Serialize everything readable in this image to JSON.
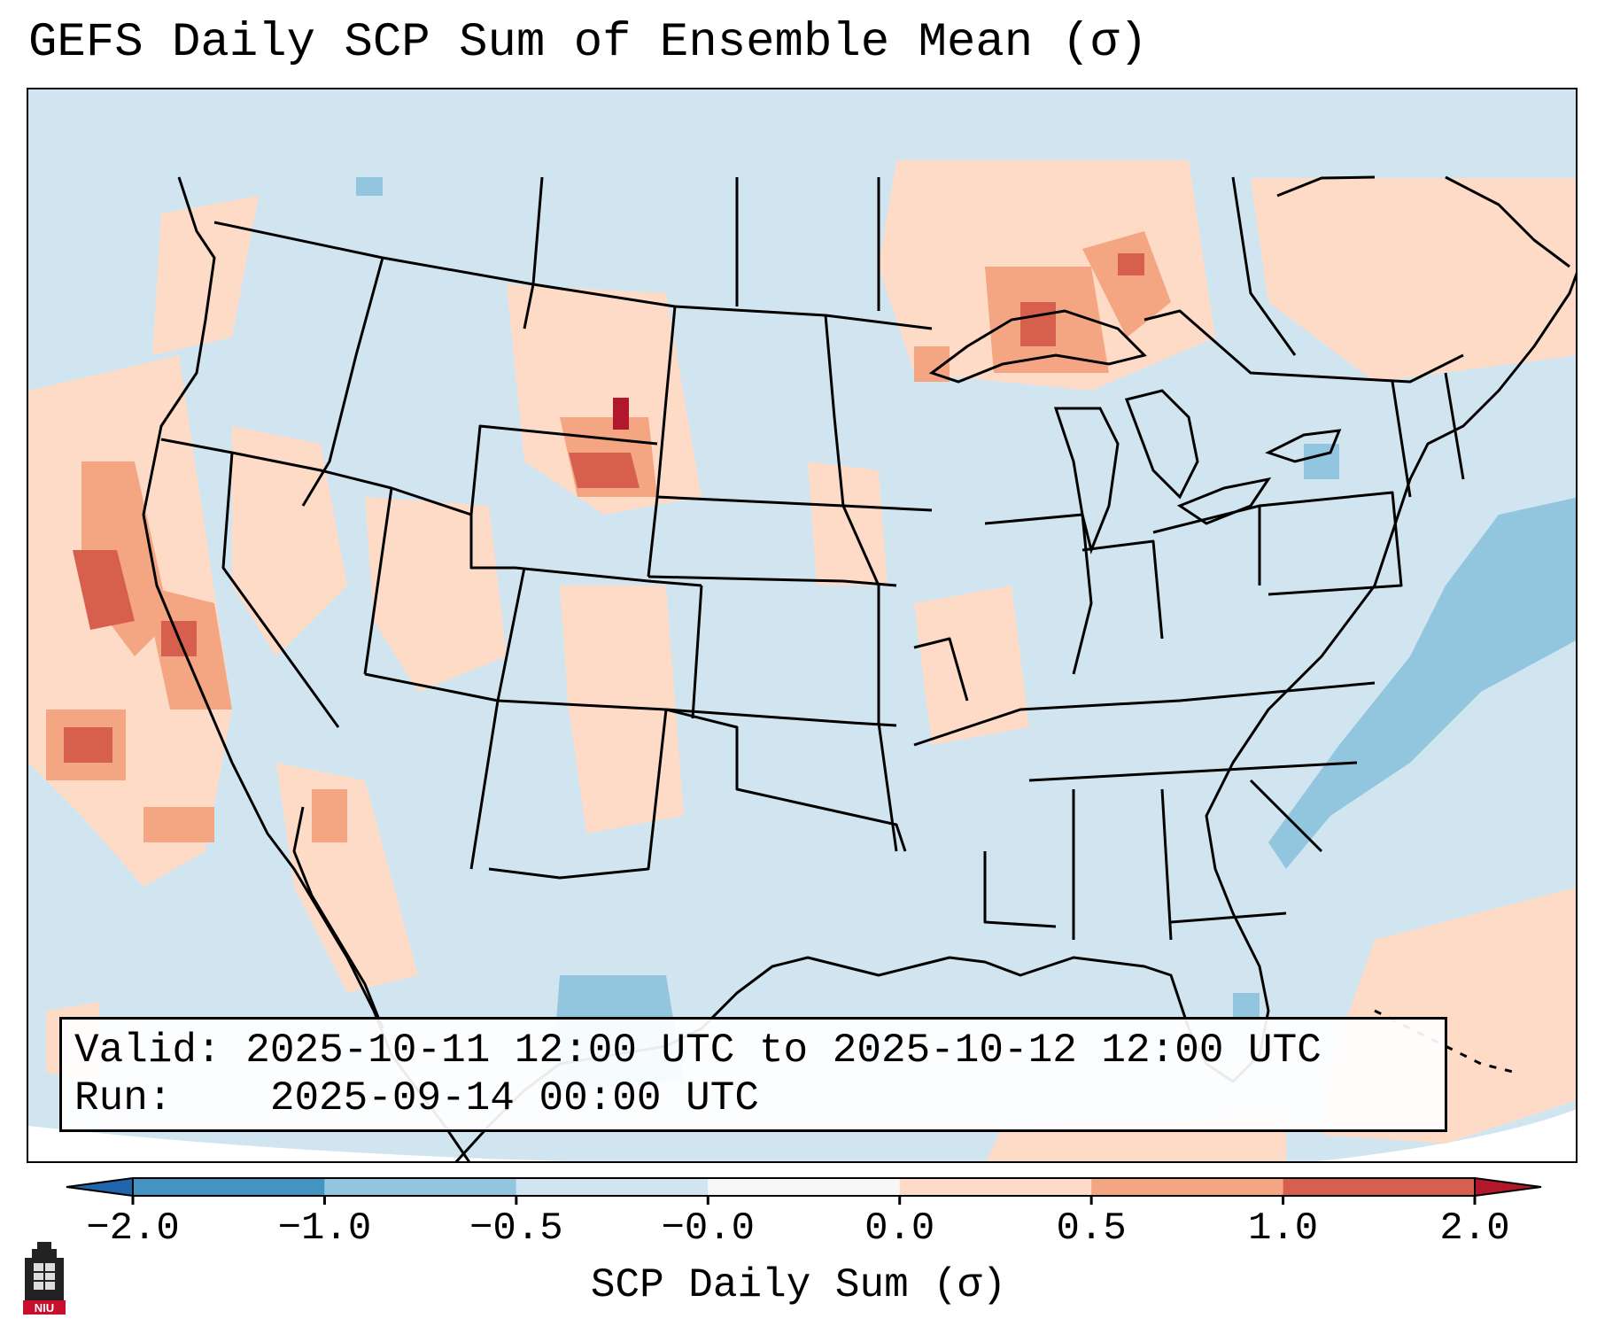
{
  "title": "GEFS Daily SCP Sum of Ensemble Mean (σ)",
  "info": {
    "valid_label": "Valid:",
    "valid_value": "2025-10-11 12:00 UTC to 2025-10-12 12:00 UTC",
    "run_label": "Run:",
    "run_value": "2025-09-14 00:00 UTC"
  },
  "colorbar": {
    "label": "SCP Daily Sum (σ)",
    "ticks": [
      "−2.0",
      "−1.0",
      "−0.5",
      "−0.0",
      "0.0",
      "0.5",
      "1.0",
      "2.0"
    ],
    "colors": [
      "#2166ac",
      "#4393c3",
      "#92c5de",
      "#d1e5f0",
      "#f7f7f7",
      "#fddbc7",
      "#f4a582",
      "#d6604d",
      "#b2182b"
    ]
  },
  "map": {
    "background_color": "#d1e5f0",
    "region": "Continental United States, southern Canada, northern Mexico",
    "anomaly_areas": [
      {
        "region": "California coast / Pacific",
        "level": "0.5 to 1.0 σ"
      },
      {
        "region": "Wyoming / western Nebraska",
        "level": "up to 2.0 σ"
      },
      {
        "region": "Lake Superior / Ontario",
        "level": "0.5 to 1.0 σ"
      },
      {
        "region": "Western Atlantic off Carolinas",
        "level": "−0.5 to −1.0 σ"
      },
      {
        "region": "Northern Mexico / Chihuahua",
        "level": "−0.5 to −1.0 σ"
      }
    ]
  },
  "logo": {
    "text": "NIU"
  }
}
